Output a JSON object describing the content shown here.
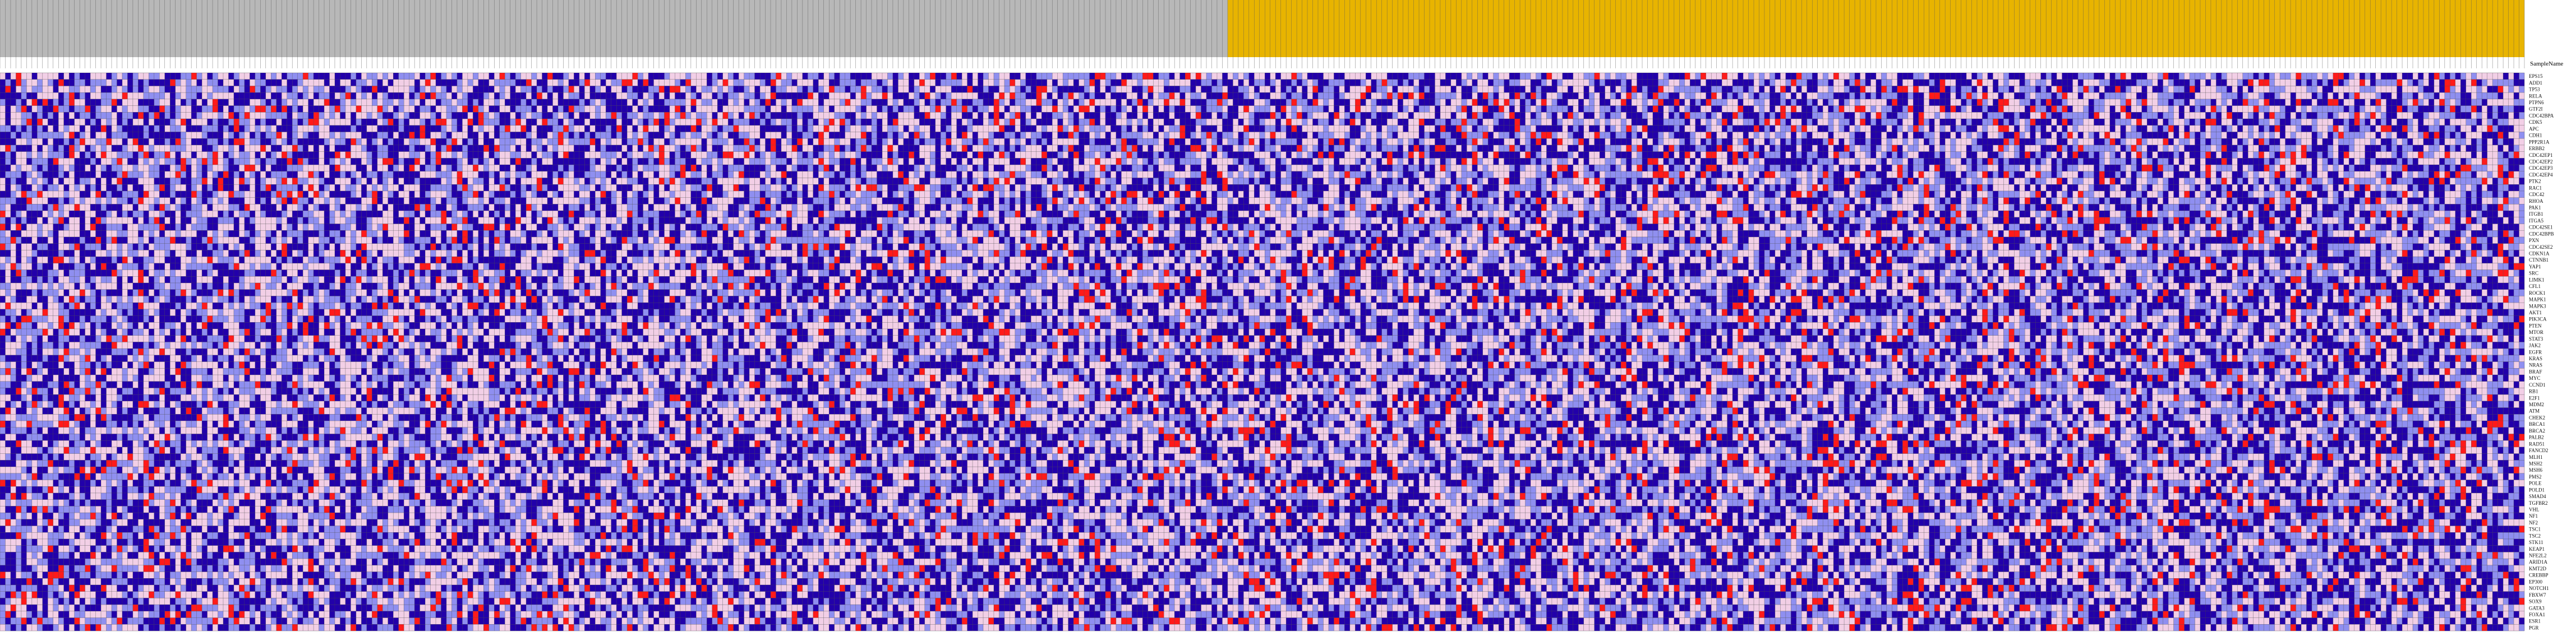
{
  "chart_data": {
    "type": "heatmap",
    "title": "",
    "xlabel": "",
    "ylabel": "",
    "row_header": "SampleName",
    "color_scale": {
      "low": "#2200aa",
      "mid_low": "#8f8ff0",
      "mid": "#f2cfe6",
      "high": "#ff1a1a"
    },
    "groups": [
      {
        "count": 231,
        "color": "#b8b8b8"
      },
      {
        "count": 244,
        "color": "#e8b400"
      }
    ],
    "num_columns": 475,
    "rows": [
      "EPS15",
      "ADD1",
      "TP53",
      "RELA",
      "PTPN6",
      "GTF2I",
      "CDC42BPA",
      "CDK5",
      "APC",
      "CDH1",
      "PPP2R1A",
      "ERBB2",
      "CDC42EP1",
      "CDC42EP2",
      "CDC42EP3",
      "CDC42EP4",
      "PTK2",
      "RAC1",
      "CDC42",
      "RHOA",
      "PAK1",
      "ITGB1",
      "ITGA5",
      "CDC42SE1",
      "CDC42BPB",
      "PXN",
      "CDC42SE2",
      "CDKN1A",
      "CTNNB1",
      "YAP1",
      "SRC",
      "LIMK1",
      "CFL1",
      "ROCK1",
      "MAPK1",
      "MAPK3",
      "AKT1",
      "PIK3CA",
      "PTEN",
      "MTOR",
      "STAT3",
      "JAK2",
      "EGFR",
      "KRAS",
      "NRAS",
      "BRAF",
      "MYC",
      "CCND1",
      "RB1",
      "E2F1",
      "MDM2",
      "ATM",
      "CHEK2",
      "BRCA1",
      "BRCA2",
      "PALB2",
      "RAD51",
      "FANCD2",
      "MLH1",
      "MSH2",
      "MSH6",
      "PMS2",
      "POLE",
      "POLD1",
      "SMAD4",
      "TGFBR2",
      "VHL",
      "NF1",
      "NF2",
      "TSC1",
      "TSC2",
      "STK11",
      "KEAP1",
      "NFE2L2",
      "ARID1A",
      "KMT2D",
      "CREBBP",
      "EP300",
      "NOTCH1",
      "FBXW7",
      "SOX9",
      "GATA3",
      "FOXA1",
      "ESR1",
      "PGR"
    ]
  }
}
